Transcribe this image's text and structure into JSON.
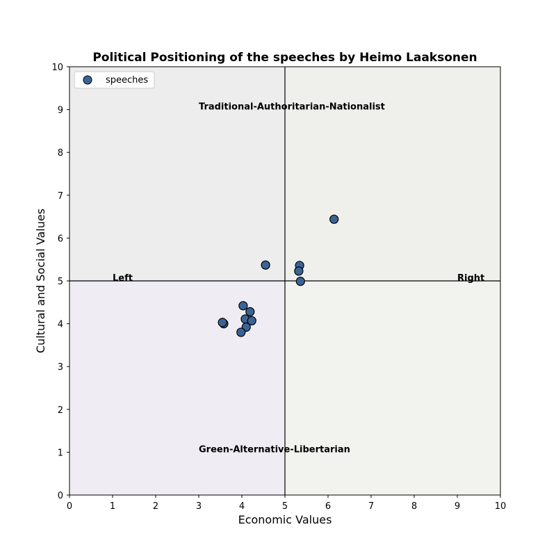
{
  "chart_data": {
    "type": "scatter",
    "title": "Political Positioning of the speeches by Heimo Laaksonen",
    "xlabel": "Economic Values",
    "ylabel": "Cultural and Social Values",
    "xlim": [
      0,
      10
    ],
    "ylim": [
      0,
      10
    ],
    "xticks": [
      "0",
      "1",
      "2",
      "3",
      "4",
      "5",
      "6",
      "7",
      "8",
      "9",
      "10"
    ],
    "yticks": [
      "0",
      "1",
      "2",
      "3",
      "4",
      "5",
      "6",
      "7",
      "8",
      "9",
      "10"
    ],
    "center_lines": {
      "x": 5,
      "y": 5
    },
    "grid": false,
    "legend": {
      "placement": "top-left",
      "entries": [
        "speeches"
      ]
    },
    "quadrant_colors": {
      "top_left": "#ededed",
      "top_right": "#eff0ec",
      "bottom_left": "#efedf3",
      "bottom_right": "#f2f2ee"
    },
    "annotations": [
      {
        "text": "Traditional-Authoritarian-Nationalist",
        "x": 3.0,
        "y": 9.0
      },
      {
        "text": "Green-Alternative-Libertarian",
        "x": 3.0,
        "y": 1.0
      },
      {
        "text": "Left",
        "x": 1.0,
        "y": 5.0
      },
      {
        "text": "Right",
        "x": 9.0,
        "y": 5.0
      }
    ],
    "series": [
      {
        "name": "speeches",
        "color": "#3a6496",
        "edge_color": "#000000",
        "points": [
          {
            "x": 6.14,
            "y": 6.44
          },
          {
            "x": 4.55,
            "y": 5.37
          },
          {
            "x": 5.34,
            "y": 5.36
          },
          {
            "x": 5.32,
            "y": 5.23
          },
          {
            "x": 5.36,
            "y": 4.99
          },
          {
            "x": 4.03,
            "y": 4.42
          },
          {
            "x": 4.19,
            "y": 4.28
          },
          {
            "x": 4.08,
            "y": 4.11
          },
          {
            "x": 4.23,
            "y": 4.07
          },
          {
            "x": 3.58,
            "y": 4.0
          },
          {
            "x": 3.55,
            "y": 4.03
          },
          {
            "x": 4.1,
            "y": 3.92
          },
          {
            "x": 3.98,
            "y": 3.8
          }
        ]
      }
    ]
  }
}
